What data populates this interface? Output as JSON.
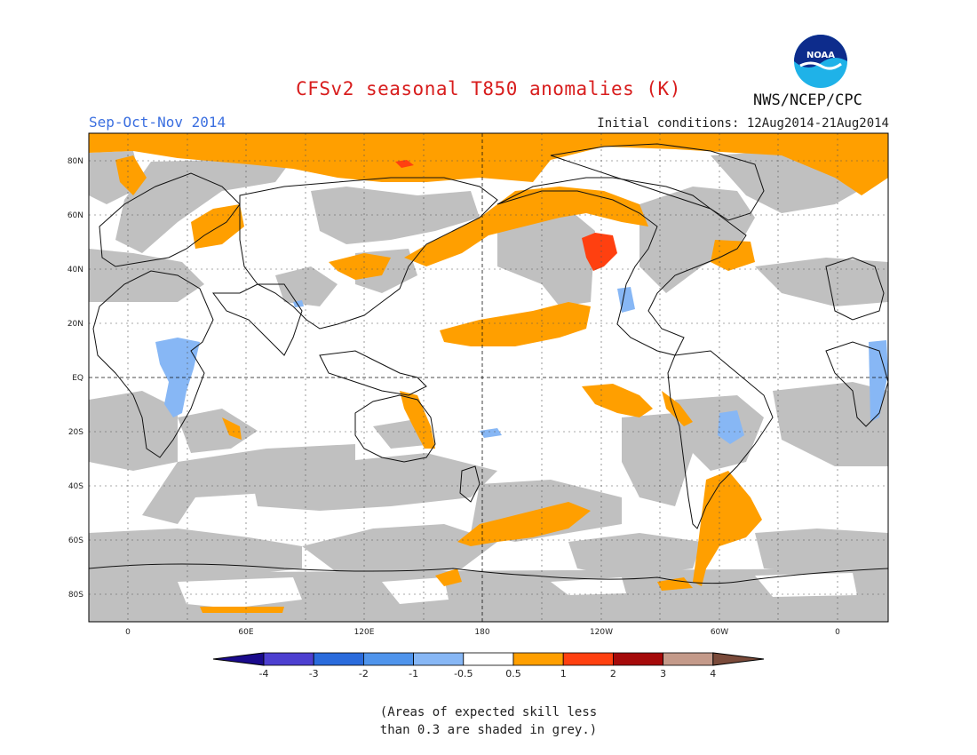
{
  "header": {
    "title": "CFSv2 seasonal T850 anomalies (K)",
    "season": "Sep-Oct-Nov 2014",
    "initial_conditions": "Initial conditions: 12Aug2014-21Aug2014",
    "agency": "NWS/NCEP/CPC",
    "logo_text": "NOAA",
    "logo_icon": "noaa-logo-icon"
  },
  "map": {
    "lat_labels": [
      "80N",
      "60N",
      "40N",
      "20N",
      "EQ",
      "20S",
      "40S",
      "60S",
      "80S"
    ],
    "lon_labels": [
      "0",
      "60E",
      "120E",
      "180",
      "120W",
      "60W",
      "0"
    ],
    "colors": {
      "land_fill": "#ffffff",
      "grey_low_skill": "#c0c0c0",
      "warm_0_5_to_1": "#ff9f00",
      "warm_1_to_2": "#ff4010",
      "cool_minus_1_to_minus_0_5": "#87b7f5",
      "cool_minus_2_to_minus_1": "#4f94ec"
    }
  },
  "colorbar": {
    "labels": [
      "-4",
      "-3",
      "-2",
      "-1",
      "-0.5",
      "0.5",
      "1",
      "2",
      "3",
      "4"
    ],
    "colors": [
      "#1a0a8c",
      "#4d3fd0",
      "#2a6bdc",
      "#4f94ec",
      "#87b7f5",
      "#ffffff",
      "#ff9f00",
      "#ff4010",
      "#a50a0a",
      "#c49a8a",
      "#7a4a3a"
    ]
  },
  "note": {
    "line1": "(Areas of expected skill less",
    "line2": "than 0.3 are shaded in grey.)"
  }
}
